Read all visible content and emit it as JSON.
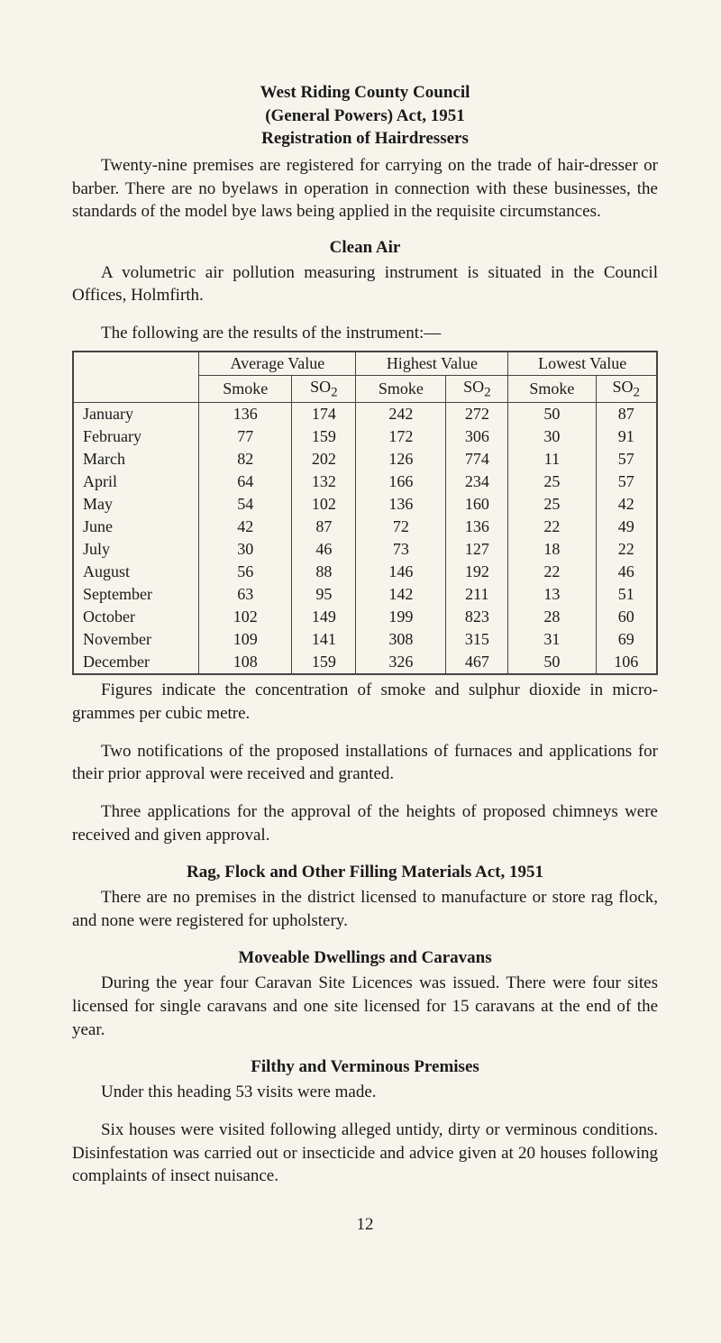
{
  "header": {
    "line1": "West Riding County Council",
    "line2": "(General Powers) Act, 1951",
    "line3": "Registration of Hairdressers"
  },
  "para_hairdressers": "Twenty-nine premises are registered for carrying on the trade of hair-dresser or barber. There are no byelaws in operation in connection with these businesses, the standards of the model bye laws being applied in the requisite circumstances.",
  "clean_air": {
    "title": "Clean Air",
    "para1": "A volumetric air pollution measuring instrument is situated in the Council Offices, Holmfirth.",
    "para2": "The following are the results of the instrument:—"
  },
  "table": {
    "type": "table",
    "group_headers": [
      "Average Value",
      "Highest Value",
      "Lowest Value"
    ],
    "sub_headers": [
      "Smoke",
      "SO2",
      "Smoke",
      "SO2",
      "Smoke",
      "SO2"
    ],
    "rows": [
      {
        "month": "January",
        "vals": [
          "136",
          "174",
          "242",
          "272",
          "50",
          "87"
        ]
      },
      {
        "month": "February",
        "vals": [
          "77",
          "159",
          "172",
          "306",
          "30",
          "91"
        ]
      },
      {
        "month": "March",
        "vals": [
          "82",
          "202",
          "126",
          "774",
          "11",
          "57"
        ]
      },
      {
        "month": "April",
        "vals": [
          "64",
          "132",
          "166",
          "234",
          "25",
          "57"
        ]
      },
      {
        "month": "May",
        "vals": [
          "54",
          "102",
          "136",
          "160",
          "25",
          "42"
        ]
      },
      {
        "month": "June",
        "vals": [
          "42",
          "87",
          "72",
          "136",
          "22",
          "49"
        ]
      },
      {
        "month": "July",
        "vals": [
          "30",
          "46",
          "73",
          "127",
          "18",
          "22"
        ]
      },
      {
        "month": "August",
        "vals": [
          "56",
          "88",
          "146",
          "192",
          "22",
          "46"
        ]
      },
      {
        "month": "September",
        "vals": [
          "63",
          "95",
          "142",
          "211",
          "13",
          "51"
        ]
      },
      {
        "month": "October",
        "vals": [
          "102",
          "149",
          "199",
          "823",
          "28",
          "60"
        ]
      },
      {
        "month": "November",
        "vals": [
          "109",
          "141",
          "308",
          "315",
          "31",
          "69"
        ]
      },
      {
        "month": "December",
        "vals": [
          "108",
          "159",
          "326",
          "467",
          "50",
          "106"
        ]
      }
    ],
    "border_color": "#444444",
    "outer_border_width": 2,
    "inner_border_width": 1,
    "font_size": 18
  },
  "after_table": {
    "p1": "Figures indicate the concentration of smoke and sulphur dioxide in micro-grammes per cubic metre.",
    "p2": "Two notifications of the proposed installations of furnaces and applications for their prior approval were received and granted.",
    "p3": "Three applications for the approval of the heights of proposed chimneys were received and given approval."
  },
  "rag": {
    "title": "Rag, Flock and Other Filling Materials Act, 1951",
    "para": "There are no premises in the district licensed to manufacture or store rag flock, and none were registered for upholstery."
  },
  "moveable": {
    "title": "Moveable Dwellings and Caravans",
    "para": "During the year four Caravan Site Licences was issued. There were four sites licensed for single caravans and one site licensed for 15 caravans at the end of the year."
  },
  "filthy": {
    "title": "Filthy and Verminous Premises",
    "p1": "Under this heading 53 visits were made.",
    "p2": "Six houses were visited following alleged untidy, dirty or verminous conditions. Disinfestation was carried out or insecticide and advice given at 20 houses following complaints of insect nuisance."
  },
  "page_number": "12",
  "colors": {
    "background": "#f7f4ec",
    "text": "#1a1a1a"
  },
  "typography": {
    "body_font": "Times New Roman",
    "body_size_pt": 14,
    "heading_weight": "bold"
  }
}
